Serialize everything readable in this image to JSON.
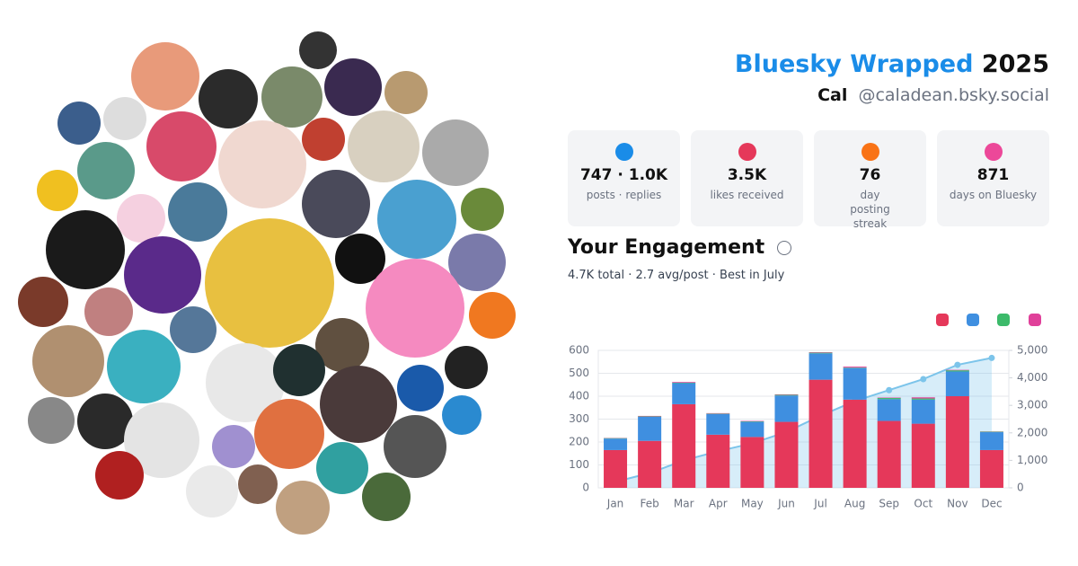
{
  "header": {
    "title": "Bluesky Wrapped",
    "year": "2025",
    "name": "Cal",
    "handle": "@caladean.bsky.social"
  },
  "stats": [
    {
      "value": "747 · 1.0K",
      "label": "posts · replies"
    },
    {
      "value": "3.5K",
      "label": "likes received"
    },
    {
      "value": "76",
      "label": "day posting streak"
    },
    {
      "value": "871",
      "label": "days on Bluesky"
    }
  ],
  "engagement": {
    "title": "Your Engagement",
    "subtitle": "4.7K total · 2.7 avg/post · Best in July"
  },
  "chart_data": {
    "type": "bar",
    "stacked": true,
    "grid": true,
    "categories": [
      "Jan",
      "Feb",
      "Mar",
      "Apr",
      "May",
      "Jun",
      "Jul",
      "Aug",
      "Sep",
      "Oct",
      "Nov",
      "Dec"
    ],
    "series": [
      {
        "color": "#e5385a",
        "values": [
          165,
          205,
          365,
          232,
          222,
          288,
          472,
          385,
          292,
          280,
          400,
          165
        ]
      },
      {
        "color": "#3f8fe0",
        "values": [
          50,
          105,
          92,
          90,
          66,
          115,
          115,
          138,
          95,
          105,
          108,
          78
        ]
      },
      {
        "color": "#3cba6a",
        "values": [
          2,
          2,
          2,
          2,
          2,
          3,
          3,
          2,
          5,
          5,
          5,
          2
        ]
      },
      {
        "color": "#e0409a",
        "values": [
          1,
          2,
          3,
          2,
          2,
          2,
          2,
          4,
          2,
          5,
          2,
          1
        ]
      },
      {
        "type": "area",
        "axis": "y2",
        "color": "#7cc4ea",
        "values": [
          220,
          535,
          1000,
          1330,
          1620,
          2030,
          2625,
          3155,
          3555,
          3955,
          4475,
          4725
        ]
      }
    ],
    "ylim": [
      0,
      600
    ],
    "yticks": [
      0,
      100,
      200,
      300,
      400,
      500,
      600
    ],
    "y2lim": [
      0,
      5000
    ],
    "y2ticks": [
      0,
      {
        "value": 1000,
        "label": "1,000"
      },
      {
        "value": 2000,
        "label": "2,000"
      },
      {
        "value": 3000,
        "label": "3,000"
      },
      {
        "value": 4000,
        "label": "4,000"
      },
      {
        "value": 5000,
        "label": "5,000"
      }
    ]
  }
}
